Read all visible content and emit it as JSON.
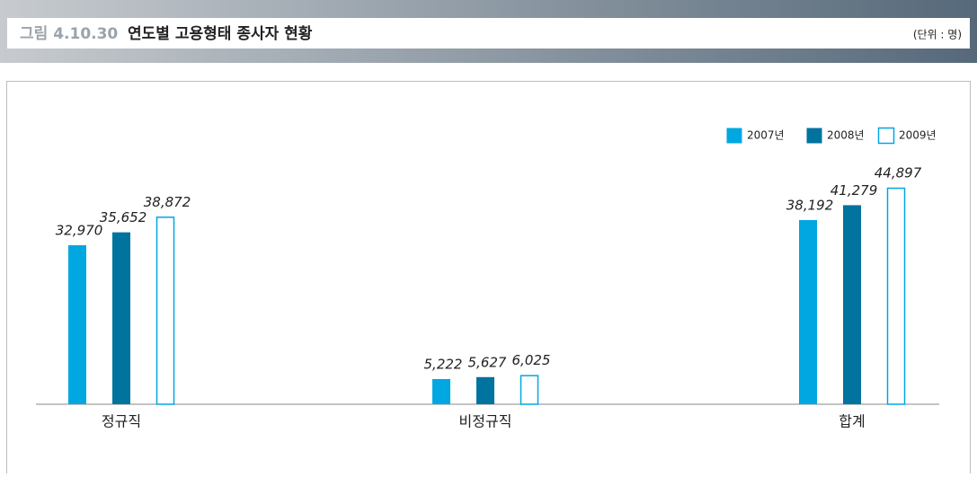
{
  "header": {
    "figure": "그림 4.10.30",
    "title": "연도별 고용형태 종사자 현황",
    "unit": "(단위 : 명)"
  },
  "chart_data": {
    "type": "bar",
    "categories": [
      "정규직",
      "비정규직",
      "합계"
    ],
    "series": [
      {
        "name": "2007년",
        "color": "#00a7e1",
        "values": [
          32970,
          5222,
          38192
        ],
        "value_labels": [
          "32,970",
          "5,222",
          "38,192"
        ]
      },
      {
        "name": "2008년",
        "color": "#00739f",
        "values": [
          35652,
          5627,
          41279
        ],
        "value_labels": [
          "35,652",
          "5,627",
          "41,279"
        ]
      },
      {
        "name": "2009년",
        "color": "#ffffff",
        "edge": "#00a7e1",
        "values": [
          38872,
          6025,
          44897
        ],
        "value_labels": [
          "38,872",
          "6,025",
          "44,897"
        ]
      }
    ],
    "legend": "top-right"
  }
}
